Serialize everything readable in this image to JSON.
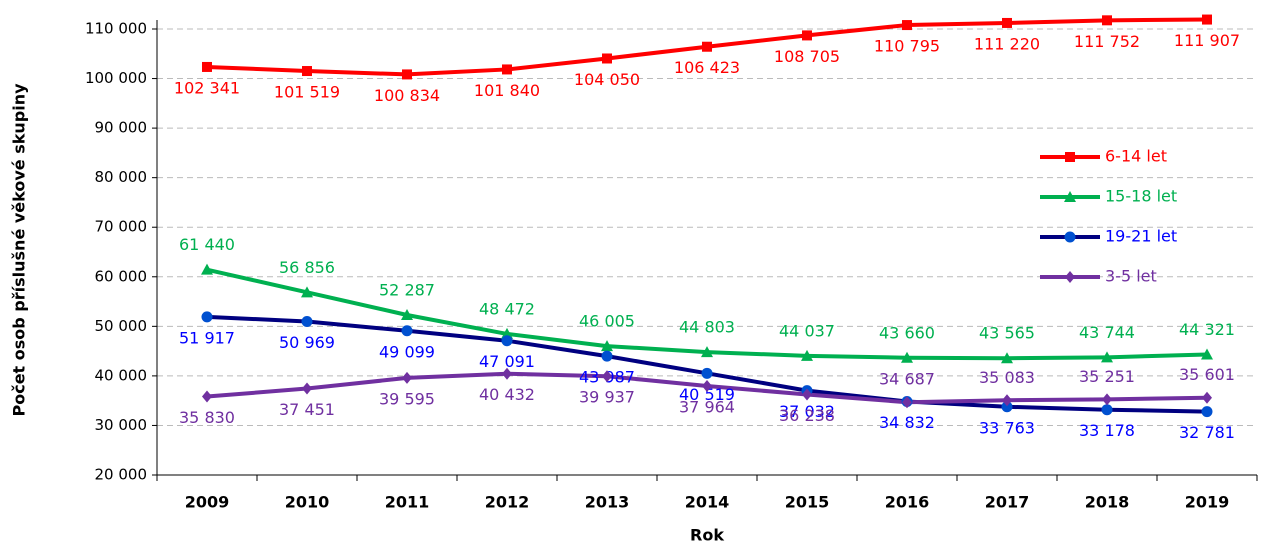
{
  "chart_data": {
    "type": "line",
    "x_label": "Rok",
    "y_label": "Počet osob příslušné věkové skupiny",
    "categories": [
      "2009",
      "2010",
      "2011",
      "2012",
      "2013",
      "2014",
      "2015",
      "2016",
      "2017",
      "2018",
      "2019"
    ],
    "ylim": [
      20000,
      110000
    ],
    "yticks": [
      {
        "value": 20000,
        "label": "20 000"
      },
      {
        "value": 30000,
        "label": "30 000"
      },
      {
        "value": 40000,
        "label": "40 000"
      },
      {
        "value": 50000,
        "label": "50 000"
      },
      {
        "value": 60000,
        "label": "60 000"
      },
      {
        "value": 70000,
        "label": "70 000"
      },
      {
        "value": 80000,
        "label": "80 000"
      },
      {
        "value": 90000,
        "label": "90 000"
      },
      {
        "value": 100000,
        "label": "100 000"
      },
      {
        "value": 110000,
        "label": "110 000"
      }
    ],
    "grid": true,
    "legend": "right",
    "series": [
      {
        "name": "6-14 let",
        "color": "#ff0000",
        "marker": "square",
        "values": [
          102341,
          101519,
          100834,
          101840,
          104050,
          106423,
          108705,
          110795,
          111220,
          111752,
          111907
        ],
        "value_labels": [
          "102 341",
          "101 519",
          "100 834",
          "101 840",
          "104 050",
          "106 423",
          "108 705",
          "110 795",
          "111 220",
          "111 752",
          "111 907"
        ]
      },
      {
        "name": "15-18 let",
        "color": "#00b050",
        "marker": "triangle",
        "values": [
          61440,
          56856,
          52287,
          48472,
          46005,
          44803,
          44037,
          43660,
          43565,
          43744,
          44321
        ],
        "value_labels": [
          "61 440",
          "56 856",
          "52 287",
          "48 472",
          "46 005",
          "44 803",
          "44 037",
          "43 660",
          "43 565",
          "43 744",
          "44 321"
        ]
      },
      {
        "name": "19-21 let",
        "color": "#000080",
        "label_color": "#0000ff",
        "marker": "circle",
        "values": [
          51917,
          50969,
          49099,
          47091,
          43987,
          40519,
          37032,
          34832,
          33763,
          33178,
          32781
        ],
        "value_labels": [
          "51 917",
          "50 969",
          "49 099",
          "47 091",
          "43 987",
          "40 519",
          "37 032",
          "34 832",
          "33 763",
          "33 178",
          "32 781"
        ]
      },
      {
        "name": "3-5 let",
        "color": "#7030a0",
        "marker": "diamond",
        "values": [
          35830,
          37451,
          39595,
          40432,
          39937,
          37964,
          36238,
          34687,
          35083,
          35251,
          35601
        ],
        "value_labels": [
          "35 830",
          "37 451",
          "39 595",
          "40 432",
          "39 937",
          "37 964",
          "36 238",
          "34 687",
          "35 083",
          "35 251",
          "35 601"
        ]
      }
    ]
  }
}
